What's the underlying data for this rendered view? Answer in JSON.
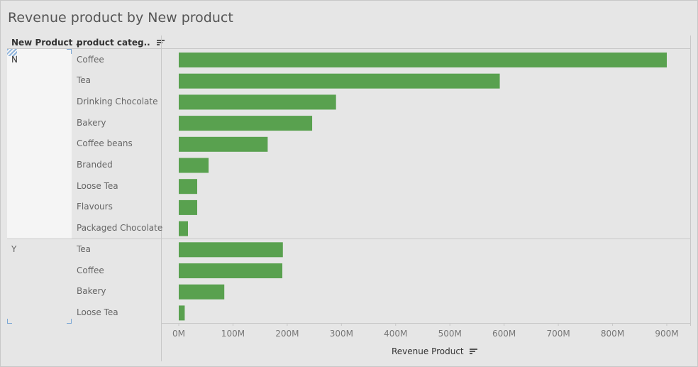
{
  "title": "Revenue product by New product",
  "headers": {
    "new_product": "New Product ..",
    "product_category": "product categ.."
  },
  "chart_data": {
    "type": "bar",
    "orientation": "horizontal",
    "title": "Revenue product by New product",
    "xlabel": "Revenue Product",
    "xlim": [
      0,
      920000000
    ],
    "x_ticks": [
      0,
      100000000,
      200000000,
      300000000,
      400000000,
      500000000,
      600000000,
      700000000,
      800000000,
      900000000
    ],
    "x_tick_labels": [
      "0M",
      "100M",
      "200M",
      "300M",
      "400M",
      "500M",
      "600M",
      "700M",
      "800M",
      "900M"
    ],
    "bar_color": "#59a14f",
    "groups": [
      {
        "name": "N",
        "categories": [
          "Coffee",
          "Tea",
          "Drinking Chocolate",
          "Bakery",
          "Coffee beans",
          "Branded",
          "Loose Tea",
          "Flavours",
          "Packaged Chocolate"
        ],
        "values": [
          900000000,
          592000000,
          290000000,
          246000000,
          164000000,
          55000000,
          34000000,
          34000000,
          17000000
        ]
      },
      {
        "name": "Y",
        "categories": [
          "Tea",
          "Coffee",
          "Bakery",
          "Loose Tea"
        ],
        "values": [
          192000000,
          191000000,
          84000000,
          11000000
        ]
      }
    ]
  }
}
